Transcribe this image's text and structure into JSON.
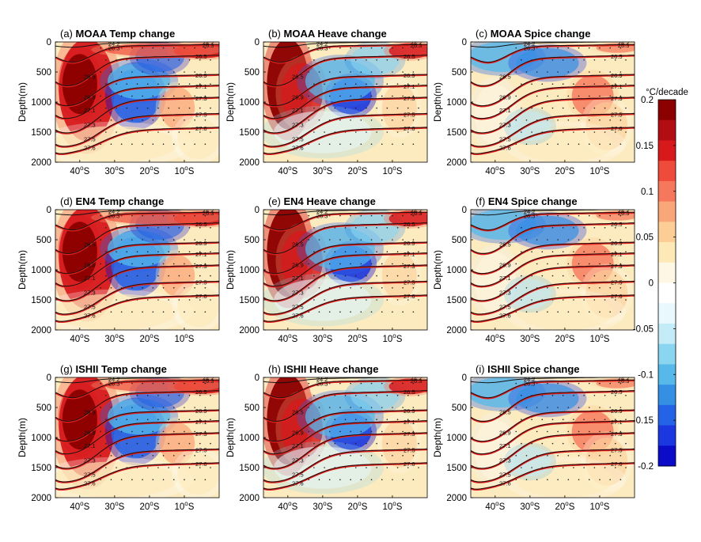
{
  "chart_data": {
    "type": "heatmap",
    "colorbar": {
      "title": "°C/decade",
      "ticks": [
        "0.2",
        "0.15",
        "0.1",
        "0.05",
        "0",
        "-0.05",
        "-0.1",
        "-0.15",
        "-0.2"
      ],
      "range": [
        -0.2,
        0.2
      ],
      "colors": [
        "#8b0000",
        "#b30d14",
        "#d7191c",
        "#ef4b3a",
        "#f6785c",
        "#f9a679",
        "#fccd94",
        "#fde9b6",
        "#fff7e6",
        "#ffffff",
        "#e8f8fd",
        "#c3ecf8",
        "#8ad6f0",
        "#56b9ea",
        "#3590e4",
        "#2563e6",
        "#1a37e0",
        "#0b0bc8"
      ]
    },
    "ylabel": "Depth(m)",
    "y_ticks": [
      "0",
      "500",
      "1000",
      "1500",
      "2000"
    ],
    "x_ticks": [
      "40oS",
      "30oS",
      "20oS",
      "10oS"
    ],
    "ylim": [
      2000,
      0
    ],
    "isopycnal_labels": [
      "24.2",
      "26.3",
      "26.5",
      "26.9",
      "27.1",
      "27.3",
      "27.5",
      "27.6"
    ],
    "panels": [
      {
        "letter": "(a)",
        "title": "MOAA Temp change",
        "pattern": "temp"
      },
      {
        "letter": "(b)",
        "title": "MOAA Heave change",
        "pattern": "heave"
      },
      {
        "letter": "(c)",
        "title": "MOAA Spice change",
        "pattern": "spice"
      },
      {
        "letter": "(d)",
        "title": "EN4 Temp change",
        "pattern": "temp"
      },
      {
        "letter": "(e)",
        "title": "EN4 Heave change",
        "pattern": "heave"
      },
      {
        "letter": "(f)",
        "title": "EN4 Spice change",
        "pattern": "spice"
      },
      {
        "letter": "(g)",
        "title": "ISHII Temp change",
        "pattern": "temp"
      },
      {
        "letter": "(h)",
        "title": "ISHII Heave change",
        "pattern": "heave"
      },
      {
        "letter": "(i)",
        "title": "ISHII Spice change",
        "pattern": "spice"
      }
    ]
  }
}
